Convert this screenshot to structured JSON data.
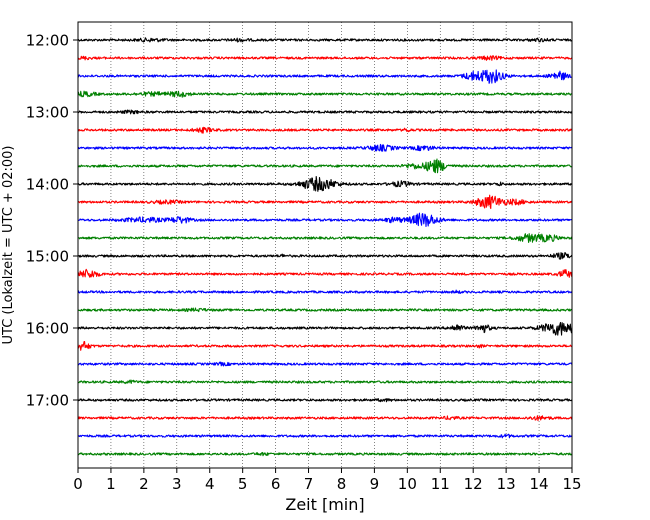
{
  "chart_data": {
    "type": "line",
    "title": "",
    "xlabel": "Zeit  [min]",
    "ylabel": "UTC (Lokalzeit = UTC + 02:00)",
    "xlim": [
      0,
      15
    ],
    "x_ticks": [
      "0",
      "1",
      "2",
      "3",
      "4",
      "5",
      "6",
      "7",
      "8",
      "9",
      "10",
      "11",
      "12",
      "13",
      "14",
      "15"
    ],
    "y_tick_labels": [
      "12:00",
      "13:00",
      "14:00",
      "15:00",
      "16:00",
      "17:00"
    ],
    "grid": "vertical dotted at each minute",
    "trace_colors": [
      "#000000",
      "#ff0000",
      "#0000ff",
      "#008000"
    ],
    "traces": [
      {
        "start": "12:00",
        "bursts": [
          {
            "t": 2.2,
            "a": 1.2,
            "w": 0.4
          },
          {
            "t": 4.9,
            "a": 1.0,
            "w": 0.3
          },
          {
            "t": 14.0,
            "a": 1.0,
            "w": 0.3
          }
        ]
      },
      {
        "start": "12:15",
        "bursts": [
          {
            "t": 0.2,
            "a": 1.0,
            "w": 0.2
          },
          {
            "t": 12.5,
            "a": 1.5,
            "w": 0.3
          }
        ]
      },
      {
        "start": "12:30",
        "bursts": [
          {
            "t": 12.0,
            "a": 3.5,
            "w": 0.3
          },
          {
            "t": 12.55,
            "a": 6.5,
            "w": 0.35
          },
          {
            "t": 14.6,
            "a": 4.0,
            "w": 0.25
          }
        ]
      },
      {
        "start": "12:45",
        "bursts": [
          {
            "t": 0.2,
            "a": 2.0,
            "w": 0.3
          },
          {
            "t": 2.3,
            "a": 1.3,
            "w": 0.5
          },
          {
            "t": 3.1,
            "a": 2.2,
            "w": 0.3
          }
        ]
      },
      {
        "start": "13:00",
        "bursts": [
          {
            "t": 1.6,
            "a": 1.0,
            "w": 0.3
          }
        ]
      },
      {
        "start": "13:15",
        "bursts": [
          {
            "t": 3.8,
            "a": 2.0,
            "w": 0.3
          },
          {
            "t": 10.0,
            "a": 1.5,
            "w": 0.1
          }
        ]
      },
      {
        "start": "13:30",
        "bursts": [
          {
            "t": 9.2,
            "a": 2.5,
            "w": 0.4
          },
          {
            "t": 10.5,
            "a": 2.0,
            "w": 0.3
          }
        ]
      },
      {
        "start": "13:45",
        "bursts": [
          {
            "t": 10.2,
            "a": 2.0,
            "w": 0.3
          },
          {
            "t": 10.85,
            "a": 6.5,
            "w": 0.3
          }
        ]
      },
      {
        "start": "14:00",
        "bursts": [
          {
            "t": 7.3,
            "a": 6.5,
            "w": 0.5
          },
          {
            "t": 9.8,
            "a": 2.2,
            "w": 0.3
          },
          {
            "t": 12.8,
            "a": 1.2,
            "w": 0.1
          }
        ]
      },
      {
        "start": "14:15",
        "bursts": [
          {
            "t": 12.5,
            "a": 6.0,
            "w": 0.4
          },
          {
            "t": 13.3,
            "a": 2.0,
            "w": 0.3
          },
          {
            "t": 2.7,
            "a": 1.2,
            "w": 0.4
          }
        ]
      },
      {
        "start": "14:30",
        "bursts": [
          {
            "t": 2.0,
            "a": 2.0,
            "w": 0.6
          },
          {
            "t": 3.1,
            "a": 2.8,
            "w": 0.3
          },
          {
            "t": 10.5,
            "a": 6.5,
            "w": 0.4
          },
          {
            "t": 9.6,
            "a": 2.0,
            "w": 0.3
          }
        ]
      },
      {
        "start": "14:45",
        "bursts": [
          {
            "t": 13.7,
            "a": 3.5,
            "w": 0.4
          },
          {
            "t": 14.3,
            "a": 2.5,
            "w": 0.3
          }
        ]
      },
      {
        "start": "15:00",
        "bursts": [
          {
            "t": 14.7,
            "a": 2.5,
            "w": 0.3
          },
          {
            "t": 6.2,
            "a": 1.0,
            "w": 0.1
          }
        ]
      },
      {
        "start": "15:15",
        "bursts": [
          {
            "t": 0.3,
            "a": 4.0,
            "w": 0.3
          },
          {
            "t": 14.8,
            "a": 3.5,
            "w": 0.2
          }
        ]
      },
      {
        "start": "15:30",
        "bursts": [
          {
            "t": 11.5,
            "a": 1.0,
            "w": 0.1
          }
        ]
      },
      {
        "start": "15:45",
        "bursts": [
          {
            "t": 3.6,
            "a": 1.0,
            "w": 0.3
          }
        ]
      },
      {
        "start": "16:00",
        "bursts": [
          {
            "t": 11.5,
            "a": 3.0,
            "w": 0.2
          },
          {
            "t": 12.3,
            "a": 3.8,
            "w": 0.2
          },
          {
            "t": 14.6,
            "a": 6.5,
            "w": 0.5
          }
        ]
      },
      {
        "start": "16:15",
        "bursts": [
          {
            "t": 0.15,
            "a": 4.0,
            "w": 0.2
          },
          {
            "t": 12.2,
            "a": 1.0,
            "w": 0.1
          }
        ]
      },
      {
        "start": "16:30",
        "bursts": [
          {
            "t": 4.4,
            "a": 1.0,
            "w": 0.2
          }
        ]
      },
      {
        "start": "16:45",
        "bursts": [
          {
            "t": 1.6,
            "a": 1.0,
            "w": 0.2
          }
        ]
      },
      {
        "start": "17:00",
        "bursts": [
          {
            "t": 9.3,
            "a": 0.8,
            "w": 0.2
          }
        ]
      },
      {
        "start": "17:15",
        "bursts": [
          {
            "t": 11.3,
            "a": 1.2,
            "w": 0.2
          },
          {
            "t": 14.0,
            "a": 1.5,
            "w": 0.3
          }
        ]
      },
      {
        "start": "17:30",
        "bursts": [
          {
            "t": 13.0,
            "a": 1.0,
            "w": 0.2
          }
        ]
      },
      {
        "start": "17:45",
        "bursts": [
          {
            "t": 5.6,
            "a": 0.8,
            "w": 0.2
          }
        ]
      }
    ]
  }
}
